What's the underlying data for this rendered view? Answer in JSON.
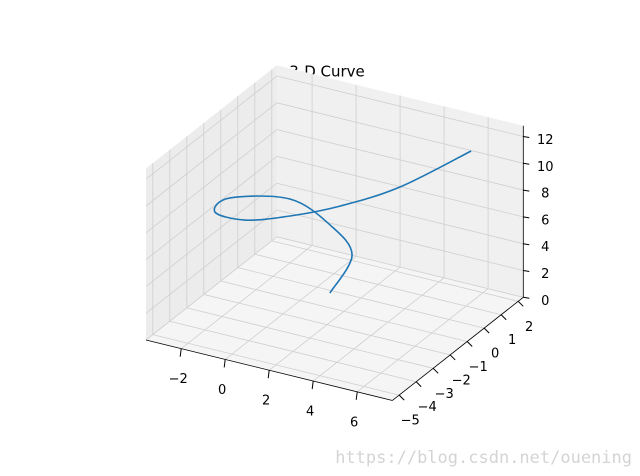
{
  "chart_data": {
    "type": "line3d",
    "title": "3-D Curve",
    "color": "#1f77b4",
    "x": [
      0.71,
      0.69,
      -0.51,
      -2.16,
      -3.4,
      -3.01,
      -1.32,
      0.36,
      1.95,
      3.78,
      5.84
    ],
    "y": [
      -0.16,
      1.17,
      1.43,
      1.2,
      -0.72,
      -2.11,
      -2.53,
      -2.05,
      -1.17,
      -0.01,
      1.51
    ],
    "z": [
      0,
      1.5,
      3,
      4.5,
      6,
      6.5,
      7,
      7.5,
      8,
      9,
      11
    ],
    "xlim": [
      -3.6,
      7.6
    ],
    "ylim": [
      -5.4,
      2.3
    ],
    "zlim": [
      0,
      12.8
    ],
    "xticks": [
      {
        "value": -2,
        "label": "−2"
      },
      0,
      2,
      4,
      6
    ],
    "yticks": [
      {
        "value": -5,
        "label": "−5"
      },
      {
        "value": -4,
        "label": "−4"
      },
      {
        "value": -3,
        "label": "−3"
      },
      {
        "value": -2,
        "label": "−2"
      },
      {
        "value": -1,
        "label": "−1"
      },
      0,
      1,
      2
    ],
    "zticks": [
      0,
      2,
      4,
      6,
      8,
      10,
      12
    ],
    "grid": true
  },
  "watermark": "https://blog.csdn.net/ouening"
}
